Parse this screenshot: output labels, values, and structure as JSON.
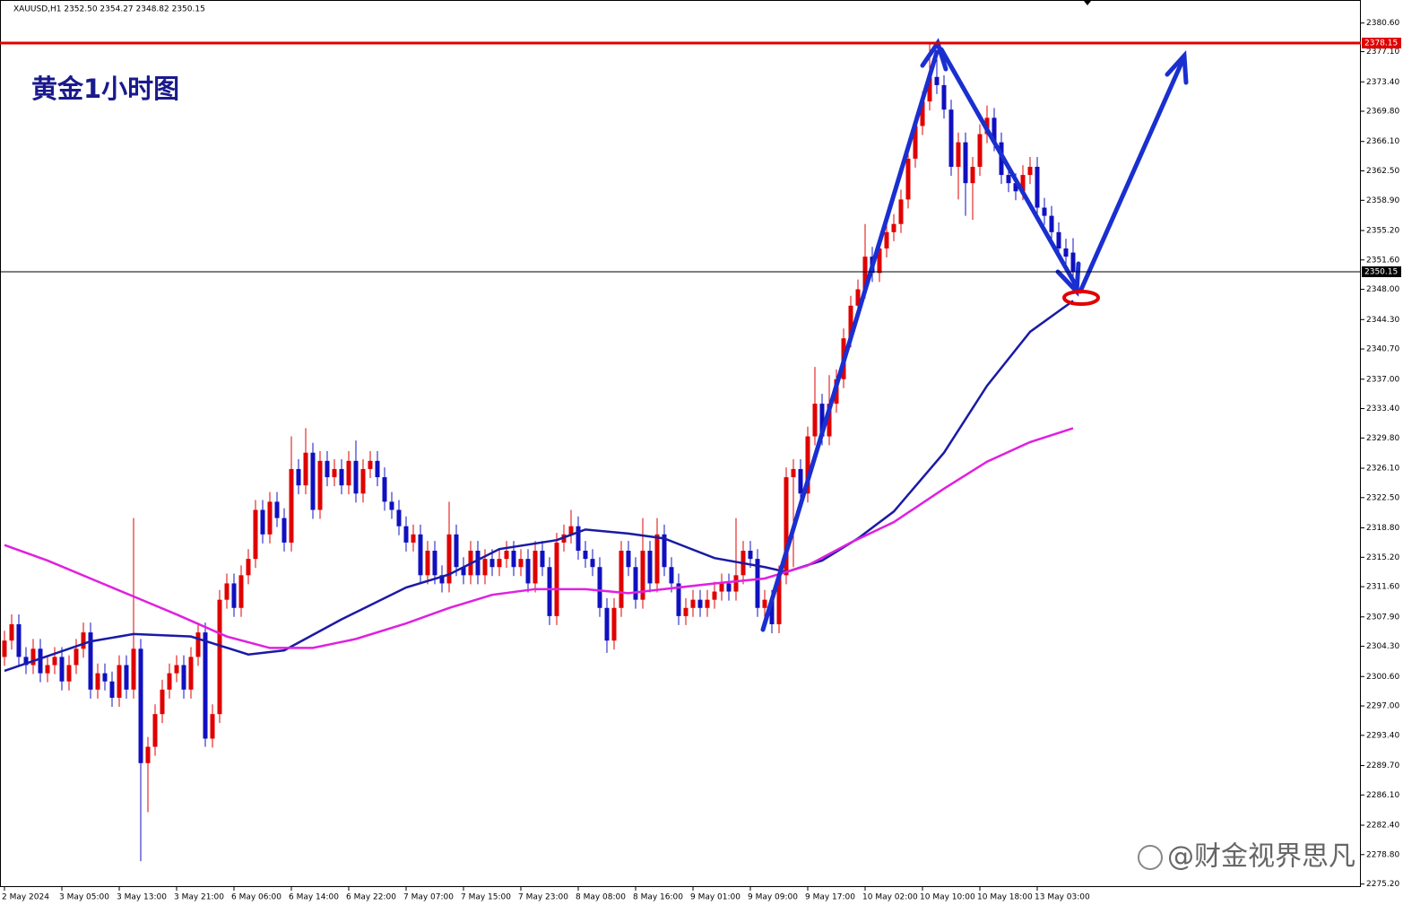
{
  "chart_data": {
    "type": "candlestick",
    "header": "XAUUSD,H1  2352.50 2354.27 2348.82 2350.15",
    "annotation": "黄金1小时图",
    "watermark": "@财金视界思凡",
    "up_color": "#e00000",
    "down_color": "#1010c0",
    "categories": [
      "2 May 2024",
      null,
      null,
      null,
      null,
      null,
      null,
      null,
      "3 May 05:00",
      null,
      null,
      null,
      null,
      null,
      null,
      null,
      "3 May 13:00",
      null,
      null,
      null,
      null,
      null,
      null,
      null,
      "3 May 21:00",
      null,
      null,
      null,
      null,
      null,
      null,
      null,
      "6 May 06:00",
      null,
      null,
      null,
      null,
      null,
      null,
      null,
      "6 May 14:00",
      null,
      null,
      null,
      null,
      null,
      null,
      null,
      "6 May 22:00",
      null,
      null,
      null,
      null,
      null,
      null,
      null,
      "7 May 07:00",
      null,
      null,
      null,
      null,
      null,
      null,
      null,
      "7 May 15:00",
      null,
      null,
      null,
      null,
      null,
      null,
      null,
      "7 May 23:00",
      null,
      null,
      null,
      null,
      null,
      null,
      null,
      "8 May 08:00",
      null,
      null,
      null,
      null,
      null,
      null,
      null,
      "8 May 16:00",
      null,
      null,
      null,
      null,
      null,
      null,
      null,
      "9 May 01:00",
      null,
      null,
      null,
      null,
      null,
      null,
      null,
      "9 May 09:00",
      null,
      null,
      null,
      null,
      null,
      null,
      null,
      "9 May 17:00",
      null,
      null,
      null,
      null,
      null,
      null,
      null,
      "10 May 02:00",
      null,
      null,
      null,
      null,
      null,
      null,
      null,
      "10 May 10:00",
      null,
      null,
      null,
      null,
      null,
      null,
      null,
      "10 May 18:00",
      null,
      null,
      null,
      null,
      null,
      null,
      null,
      "13 May 03:00",
      null,
      null,
      null,
      null,
      null
    ],
    "open": [
      2303,
      2305,
      2307,
      2303,
      2302,
      2304,
      2301,
      2302,
      2303,
      2300,
      2302,
      2304,
      2306,
      2299,
      2301,
      2300,
      2298,
      2302,
      2299,
      2304,
      2290,
      2292,
      2296,
      2299,
      2301,
      2302,
      2299,
      2303,
      2306,
      2293,
      2296,
      2310,
      2312,
      2309,
      2313,
      2315,
      2321,
      2318,
      2322,
      2320,
      2317,
      2326,
      2324,
      2328,
      2321,
      2327,
      2325,
      2326,
      2324,
      2327,
      2323,
      2326,
      2327,
      2325,
      2322,
      2321,
      2319,
      2317,
      2318,
      2313,
      2316,
      2313,
      2312,
      2318,
      2314,
      2313,
      2316,
      2313,
      2315,
      2314,
      2315,
      2316,
      2314,
      2315,
      2312,
      2316,
      2314,
      2308,
      2317,
      2318,
      2319,
      2316,
      2315,
      2314,
      2309,
      2305,
      2309,
      2316,
      2314,
      2310,
      2316,
      2312,
      2318,
      2314,
      2312,
      2308,
      2309,
      2310,
      2309,
      2310,
      2311,
      2312,
      2311,
      2313,
      2316,
      2315,
      2309,
      2310,
      2307,
      2313,
      2325,
      2326,
      2323,
      2330,
      2334,
      2330,
      2334,
      2337,
      2342,
      2346,
      2348,
      2352,
      2350,
      2353,
      2355,
      2356,
      2359,
      2364,
      2368,
      2371,
      2374,
      2373,
      2370,
      2363,
      2366,
      2361,
      2363,
      2367,
      2369,
      2366,
      2362,
      2361,
      2360,
      2362,
      2363,
      2358,
      2357,
      2355,
      2353,
      2352.5
    ],
    "high": [
      2306.2,
      2308.2,
      2308.2,
      2304.2,
      2305.2,
      2305.2,
      2303.2,
      2304.2,
      2304.2,
      2303.2,
      2305.2,
      2307.2,
      2307.2,
      2302.2,
      2302.2,
      2301.2,
      2303.2,
      2303.2,
      2320,
      2305.2,
      2293.2,
      2297.2,
      2300.2,
      2302.2,
      2303.2,
      2303.2,
      2304.2,
      2307.2,
      2307.2,
      2297.2,
      2311.2,
      2313.2,
      2313.2,
      2314.2,
      2316.2,
      2322.2,
      2322.2,
      2323.2,
      2323.2,
      2321.2,
      2330,
      2327.2,
      2331,
      2329.2,
      2328.2,
      2328.2,
      2327.2,
      2327.2,
      2328.2,
      2329.5,
      2327.2,
      2328.2,
      2328.2,
      2326.2,
      2323.2,
      2322.2,
      2320.2,
      2319.2,
      2319.2,
      2317.2,
      2317.2,
      2314.2,
      2322,
      2319.2,
      2315.2,
      2317.2,
      2317.2,
      2316.2,
      2316.2,
      2316.2,
      2317.2,
      2317.2,
      2316.2,
      2316.2,
      2317.2,
      2317.2,
      2315.2,
      2318.2,
      2319.2,
      2321,
      2320.2,
      2317.2,
      2316.2,
      2315.2,
      2310.2,
      2310.2,
      2317.2,
      2317.2,
      2315.2,
      2320,
      2317.2,
      2320,
      2319.2,
      2315.2,
      2313.2,
      2310.2,
      2311.2,
      2311.2,
      2311.2,
      2312.2,
      2313.2,
      2313.2,
      2320,
      2317.2,
      2317.2,
      2316.2,
      2311.2,
      2311.2,
      2314.2,
      2326.2,
      2327.2,
      2327.2,
      2331.2,
      2338.5,
      2335.2,
      2337.5,
      2338.2,
      2343.2,
      2347.2,
      2349.2,
      2356,
      2353.2,
      2354.2,
      2356.2,
      2357.2,
      2360.2,
      2365.2,
      2369.2,
      2372.2,
      2378.15,
      2376.2,
      2374.2,
      2371.2,
      2367.2,
      2367.2,
      2364.2,
      2368.2,
      2370.5,
      2370.2,
      2367.2,
      2363.2,
      2362.2,
      2363.2,
      2364.2,
      2364.2,
      2359.2,
      2358.2,
      2356.2,
      2354.2,
      2354.27
    ],
    "low": [
      2301.9,
      2303.9,
      2301.9,
      2300.9,
      2300.9,
      2299.9,
      2299.9,
      2300.9,
      2298.9,
      2298.9,
      2300.9,
      2302.9,
      2297.9,
      2297.9,
      2298.9,
      2296.9,
      2296.9,
      2297.9,
      2297.9,
      2278,
      2284,
      2290.9,
      2294.9,
      2297.9,
      2299.9,
      2297.9,
      2297.9,
      2301.9,
      2292,
      2291.9,
      2294.9,
      2308.9,
      2307.9,
      2307.9,
      2311.9,
      2313.9,
      2316.9,
      2316.9,
      2318.9,
      2315.9,
      2315.9,
      2322.9,
      2322.9,
      2319.9,
      2319.9,
      2323.9,
      2323.9,
      2322.9,
      2322.9,
      2321.9,
      2321.9,
      2324.9,
      2323.9,
      2320.9,
      2319.9,
      2317.9,
      2315.9,
      2315.9,
      2311.9,
      2311.9,
      2311.9,
      2310.9,
      2310.9,
      2312.9,
      2311.9,
      2311.9,
      2311.9,
      2311.9,
      2312.9,
      2312.9,
      2313.9,
      2312.9,
      2312.9,
      2310.9,
      2310.9,
      2312.9,
      2306.9,
      2306.9,
      2315.9,
      2316.9,
      2314.9,
      2313.9,
      2312.9,
      2307.9,
      2303.5,
      2303.9,
      2307.9,
      2312.9,
      2308.9,
      2308.9,
      2310.9,
      2310.9,
      2312.9,
      2310.9,
      2306.9,
      2306.9,
      2307.9,
      2307.9,
      2307.9,
      2308.9,
      2309.9,
      2309.9,
      2309.9,
      2311.9,
      2313.9,
      2307.9,
      2307.9,
      2305.9,
      2305.9,
      2311.9,
      2314,
      2321.9,
      2321.9,
      2328.9,
      2328.9,
      2328.9,
      2332.9,
      2335.9,
      2340.9,
      2344.9,
      2346.9,
      2348.9,
      2348.9,
      2351.9,
      2353.9,
      2354.9,
      2357.9,
      2362.9,
      2366.9,
      2369.9,
      2371.9,
      2368.9,
      2361.9,
      2359,
      2357,
      2356.5,
      2361.9,
      2365.9,
      2364.9,
      2360.9,
      2359.9,
      2358.9,
      2358.9,
      2360.9,
      2356.9,
      2355.9,
      2353.9,
      2351.9,
      2350.9,
      2348.82
    ],
    "close": [
      2305,
      2307,
      2303,
      2302,
      2304,
      2301,
      2302,
      2303,
      2300,
      2302,
      2304,
      2306,
      2299,
      2301,
      2300,
      2298,
      2302,
      2299,
      2304,
      2290,
      2292,
      2296,
      2299,
      2301,
      2302,
      2299,
      2303,
      2306,
      2293,
      2296,
      2310,
      2312,
      2309,
      2313,
      2315,
      2321,
      2318,
      2322,
      2320,
      2317,
      2326,
      2324,
      2328,
      2321,
      2327,
      2325,
      2326,
      2324,
      2327,
      2323,
      2326,
      2327,
      2325,
      2322,
      2321,
      2319,
      2317,
      2318,
      2313,
      2316,
      2313,
      2312,
      2318,
      2314,
      2313,
      2316,
      2313,
      2315,
      2314,
      2315,
      2316,
      2314,
      2315,
      2312,
      2316,
      2314,
      2308,
      2317,
      2318,
      2319,
      2316,
      2315,
      2314,
      2309,
      2305,
      2309,
      2316,
      2314,
      2310,
      2316,
      2312,
      2318,
      2314,
      2312,
      2308,
      2309,
      2310,
      2309,
      2310,
      2311,
      2312,
      2311,
      2313,
      2316,
      2315,
      2309,
      2310,
      2307,
      2313,
      2325,
      2326,
      2323,
      2330,
      2334,
      2330,
      2334,
      2337,
      2342,
      2346,
      2348,
      2352,
      2350,
      2353,
      2355,
      2356,
      2359,
      2364,
      2368,
      2371,
      2374,
      2373,
      2370,
      2363,
      2366,
      2361,
      2363,
      2367,
      2369,
      2366,
      2362,
      2361,
      2360,
      2362,
      2363,
      2358,
      2357,
      2355,
      2353,
      2352,
      2350.15
    ],
    "series": [
      {
        "color": "#1a1aa6",
        "x": [
          0,
          12,
          18,
          26,
          34,
          39,
          47,
          56,
          62,
          69,
          77,
          81,
          87,
          92,
          99,
          106,
          109,
          114,
          119,
          124,
          131,
          137,
          143,
          149
        ],
        "values": [
          2301.3,
          2304.9,
          2305.8,
          2305.5,
          2303.3,
          2303.8,
          2307.6,
          2311.5,
          2313.1,
          2316.2,
          2317.3,
          2318.6,
          2318.1,
          2317.5,
          2315.1,
          2314,
          2313.4,
          2314.8,
          2317.5,
          2320.8,
          2328,
          2336.2,
          2342.8,
          2346.6
        ]
      },
      {
        "color": "#e020e0",
        "x": [
          0,
          6,
          12,
          18,
          24,
          31,
          37,
          43,
          49,
          56,
          62,
          68,
          74,
          81,
          87,
          93,
          99,
          106,
          112,
          118,
          124,
          131,
          137,
          143,
          149
        ],
        "values": [
          2316.7,
          2314.8,
          2312.6,
          2310.4,
          2308.2,
          2305.5,
          2304.1,
          2304.1,
          2305.2,
          2307.1,
          2309,
          2310.6,
          2311.3,
          2311.3,
          2310.8,
          2311.4,
          2312,
          2312.6,
          2314.2,
          2317,
          2319.5,
          2323.6,
          2326.9,
          2329.3,
          2331
        ]
      }
    ],
    "hlines": [
      {
        "value": 2378.15,
        "color": "#e00000"
      },
      {
        "value": 2350.15,
        "color": "#000000"
      }
    ],
    "ylim": [
      2275.2,
      2383.2
    ],
    "yticks": [
      {
        "value": 2380.6,
        "label": "2380.60"
      },
      {
        "value": 2377.1,
        "label": "2377.10"
      },
      {
        "value": 2373.4,
        "label": "2373.40"
      },
      {
        "value": 2369.8,
        "label": "2369.80"
      },
      {
        "value": 2366.1,
        "label": "2366.10"
      },
      {
        "value": 2362.5,
        "label": "2362.50"
      },
      {
        "value": 2358.9,
        "label": "2358.90"
      },
      {
        "value": 2355.2,
        "label": "2355.20"
      },
      {
        "value": 2351.6,
        "label": "2351.60"
      },
      {
        "value": 2348,
        "label": "2348.00"
      },
      {
        "value": 2344.3,
        "label": "2344.30"
      },
      {
        "value": 2340.7,
        "label": "2340.70"
      },
      {
        "value": 2337,
        "label": "2337.00"
      },
      {
        "value": 2333.4,
        "label": "2333.40"
      },
      {
        "value": 2329.8,
        "label": "2329.80"
      },
      {
        "value": 2326.1,
        "label": "2326.10"
      },
      {
        "value": 2322.5,
        "label": "2322.50"
      },
      {
        "value": 2318.8,
        "label": "2318.80"
      },
      {
        "value": 2315.2,
        "label": "2315.20"
      },
      {
        "value": 2311.6,
        "label": "2311.60"
      },
      {
        "value": 2307.9,
        "label": "2307.90"
      },
      {
        "value": 2304.3,
        "label": "2304.30"
      },
      {
        "value": 2300.6,
        "label": "2300.60"
      },
      {
        "value": 2297,
        "label": "2297.00"
      },
      {
        "value": 2293.4,
        "label": "2293.40"
      },
      {
        "value": 2289.7,
        "label": "2289.70"
      },
      {
        "value": 2286.1,
        "label": "2286.10"
      },
      {
        "value": 2282.4,
        "label": "2282.40"
      },
      {
        "value": 2278.8,
        "label": "2278.80"
      },
      {
        "value": 2275.2,
        "label": "2275.20"
      }
    ]
  }
}
